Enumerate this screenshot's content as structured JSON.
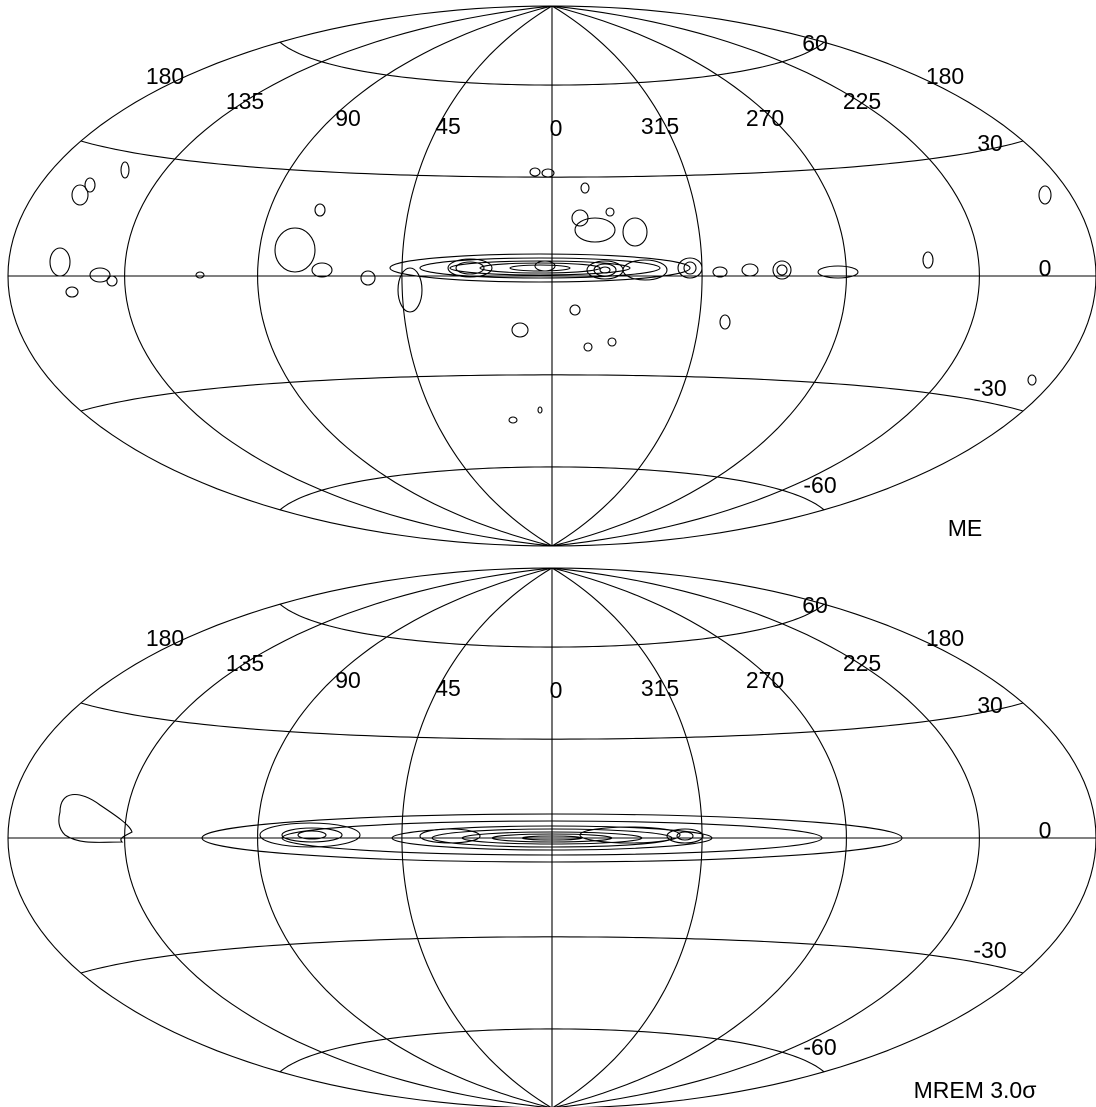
{
  "panels": [
    {
      "longitude_labels": [
        "180",
        "135",
        "90",
        "45",
        "0",
        "315",
        "270",
        "225",
        "180"
      ],
      "latitude_labels": [
        "60",
        "30",
        "0",
        "-30",
        "-60"
      ],
      "caption": "ME"
    },
    {
      "longitude_labels": [
        "180",
        "135",
        "90",
        "45",
        "0",
        "315",
        "270",
        "225",
        "180"
      ],
      "latitude_labels": [
        "60",
        "30",
        "0",
        "-30",
        "-60"
      ],
      "caption": "MREM 3.0σ"
    }
  ]
}
